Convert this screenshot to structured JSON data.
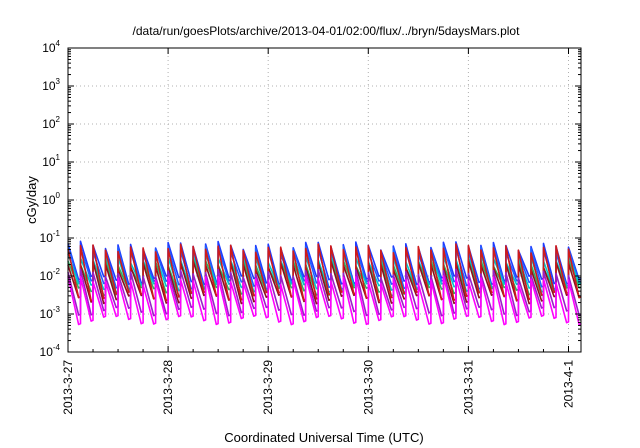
{
  "chart_data": {
    "type": "line",
    "title": "/data/run/goesPlots/archive/2013-04-01/02:00/flux/../bryn/5daysMars.plot",
    "xlabel": "Coordinated Universal Time (UTC)",
    "ylabel": "cGy/day",
    "yscale": "log",
    "ylim": [
      0.0001,
      10000
    ],
    "y_ticks": [
      {
        "base": "10",
        "exp": "-4"
      },
      {
        "base": "10",
        "exp": "-3"
      },
      {
        "base": "10",
        "exp": "-2"
      },
      {
        "base": "10",
        "exp": "-1"
      },
      {
        "base": "10",
        "exp": "0"
      },
      {
        "base": "10",
        "exp": "1"
      },
      {
        "base": "10",
        "exp": "2"
      },
      {
        "base": "10",
        "exp": "3"
      },
      {
        "base": "10",
        "exp": "4"
      }
    ],
    "xlim": [
      "2013-03-27T00:00",
      "2013-04-01T03:00"
    ],
    "x_ticks": [
      "2013-3-27",
      "2013-3-28",
      "2013-3-29",
      "2013-3-30",
      "2013-3-31",
      "2013-4-1"
    ],
    "grid": true,
    "legend": "none",
    "sawtooth_period_hours": 3,
    "series": [
      {
        "color": "#1e3cff",
        "peak": 0.065,
        "trough": 0.008
      },
      {
        "color": "#2060ff",
        "peak": 0.05,
        "trough": 0.006
      },
      {
        "color": "#00c8c8",
        "peak": 0.03,
        "trough": 0.005
      },
      {
        "color": "#30b060",
        "peak": 0.022,
        "trough": 0.004
      },
      {
        "color": "#8b1020",
        "peak": 0.02,
        "trough": 0.0025
      },
      {
        "color": "#d01a1a",
        "peak": 0.055,
        "trough": 0.003
      },
      {
        "color": "#9a20c8",
        "peak": 0.012,
        "trough": 0.0012
      },
      {
        "color": "#ff00ff",
        "peak": 0.008,
        "trough": 0.0007
      }
    ]
  }
}
